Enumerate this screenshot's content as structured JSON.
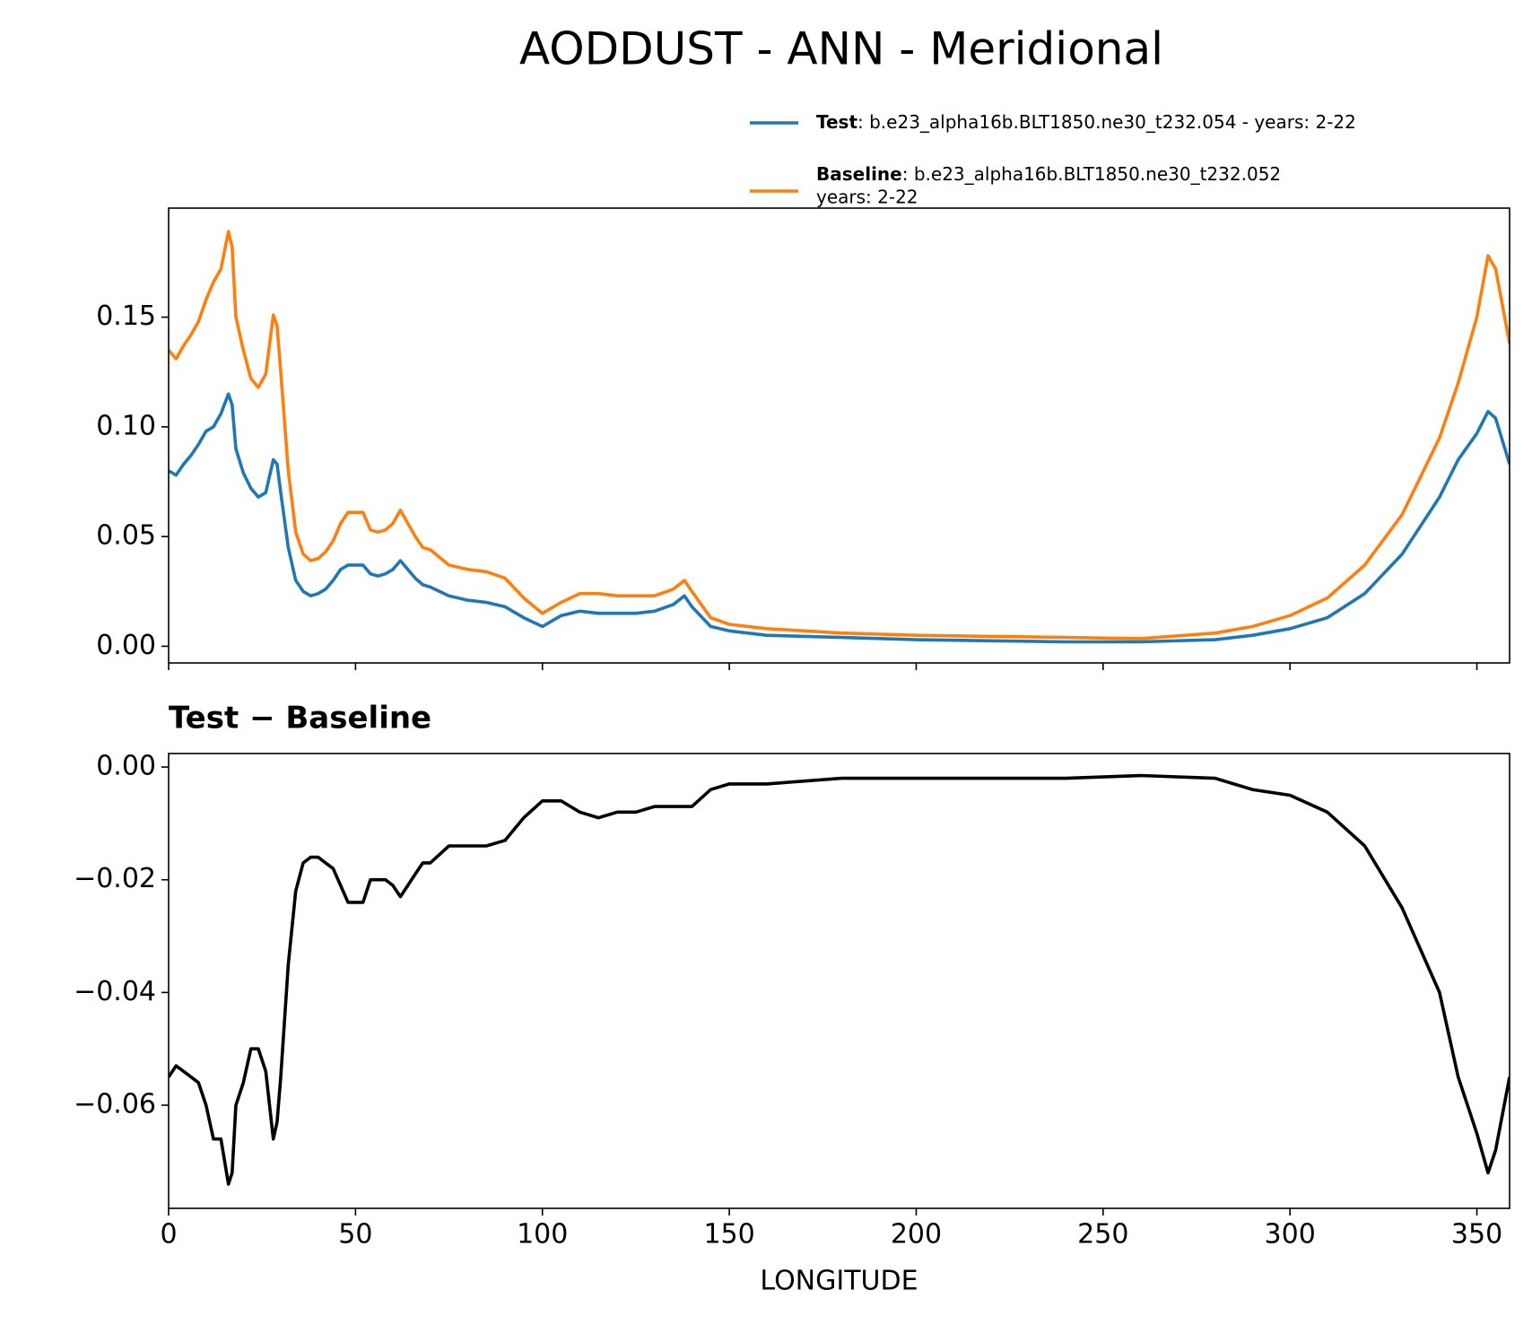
{
  "chart_data": [
    {
      "type": "line",
      "title": "AODDUST - ANN - Meridional",
      "x": [
        0,
        2,
        4,
        6,
        8,
        10,
        12,
        14,
        16,
        17,
        18,
        20,
        22,
        24,
        26,
        28,
        29,
        30,
        32,
        34,
        36,
        38,
        40,
        42,
        44,
        46,
        48,
        50,
        52,
        54,
        56,
        58,
        60,
        62,
        64,
        66,
        68,
        70,
        75,
        80,
        85,
        90,
        95,
        100,
        105,
        110,
        115,
        120,
        125,
        130,
        135,
        138,
        140,
        145,
        150,
        160,
        180,
        200,
        220,
        240,
        260,
        280,
        290,
        300,
        310,
        320,
        330,
        340,
        345,
        350,
        353,
        355,
        358.75
      ],
      "series": [
        {
          "name": "Test",
          "legend_text": [
            ": b.e23_alpha16b.BLT1850.ne30_t232.054 - years: 2-22"
          ],
          "color": "#1f77b4",
          "values": [
            0.08,
            0.078,
            0.083,
            0.087,
            0.092,
            0.098,
            0.1,
            0.106,
            0.115,
            0.11,
            0.09,
            0.079,
            0.072,
            0.068,
            0.07,
            0.085,
            0.083,
            0.07,
            0.045,
            0.03,
            0.025,
            0.023,
            0.024,
            0.026,
            0.03,
            0.035,
            0.037,
            0.037,
            0.037,
            0.033,
            0.032,
            0.033,
            0.035,
            0.039,
            0.035,
            0.031,
            0.028,
            0.027,
            0.023,
            0.021,
            0.02,
            0.018,
            0.013,
            0.009,
            0.014,
            0.016,
            0.015,
            0.015,
            0.015,
            0.016,
            0.019,
            0.023,
            0.018,
            0.009,
            0.007,
            0.005,
            0.004,
            0.003,
            0.0025,
            0.002,
            0.002,
            0.003,
            0.005,
            0.008,
            0.013,
            0.024,
            0.042,
            0.068,
            0.085,
            0.097,
            0.107,
            0.104,
            0.083
          ]
        },
        {
          "name": "Baseline",
          "legend_text": [
            ": b.e23_alpha16b.BLT1850.ne30_t232.052",
            "years: 2-22"
          ],
          "color": "#ff7f0e",
          "values": [
            0.135,
            0.131,
            0.137,
            0.142,
            0.148,
            0.158,
            0.166,
            0.172,
            0.189,
            0.182,
            0.15,
            0.135,
            0.122,
            0.118,
            0.124,
            0.151,
            0.146,
            0.125,
            0.08,
            0.052,
            0.042,
            0.039,
            0.04,
            0.043,
            0.048,
            0.056,
            0.061,
            0.061,
            0.061,
            0.053,
            0.052,
            0.053,
            0.056,
            0.062,
            0.056,
            0.05,
            0.045,
            0.044,
            0.037,
            0.035,
            0.034,
            0.031,
            0.022,
            0.015,
            0.02,
            0.024,
            0.024,
            0.023,
            0.023,
            0.023,
            0.026,
            0.03,
            0.025,
            0.013,
            0.01,
            0.008,
            0.006,
            0.005,
            0.0045,
            0.004,
            0.0035,
            0.006,
            0.009,
            0.014,
            0.022,
            0.037,
            0.06,
            0.095,
            0.12,
            0.15,
            0.178,
            0.172,
            0.138
          ]
        }
      ],
      "xlim": [
        0,
        358.75
      ],
      "xticks": [
        0,
        50,
        100,
        150,
        200,
        250,
        300,
        350
      ],
      "ylim": [
        -0.0076,
        0.1997
      ],
      "yticks": [
        {
          "value": 0,
          "label": "0.00"
        },
        {
          "value": 0.05,
          "label": "0.05"
        },
        {
          "value": 0.1,
          "label": "0.10"
        },
        {
          "value": 0.15,
          "label": "0.15"
        }
      ]
    },
    {
      "type": "line",
      "title": "Test − Baseline",
      "xlabel": "LONGITUDE",
      "x": [
        0,
        2,
        4,
        6,
        8,
        10,
        12,
        14,
        16,
        17,
        18,
        20,
        22,
        24,
        26,
        28,
        29,
        30,
        32,
        34,
        36,
        38,
        40,
        42,
        44,
        46,
        48,
        50,
        52,
        54,
        56,
        58,
        60,
        62,
        64,
        66,
        68,
        70,
        75,
        80,
        85,
        90,
        95,
        100,
        105,
        110,
        115,
        120,
        125,
        130,
        135,
        138,
        140,
        145,
        150,
        160,
        180,
        200,
        220,
        240,
        260,
        280,
        290,
        300,
        310,
        320,
        330,
        340,
        345,
        350,
        353,
        355,
        358.75
      ],
      "series": [
        {
          "color": "#000000",
          "values": [
            -0.055,
            -0.053,
            -0.054,
            -0.055,
            -0.056,
            -0.06,
            -0.066,
            -0.066,
            -0.074,
            -0.072,
            -0.06,
            -0.056,
            -0.05,
            -0.05,
            -0.054,
            -0.066,
            -0.063,
            -0.055,
            -0.035,
            -0.022,
            -0.017,
            -0.016,
            -0.016,
            -0.017,
            -0.018,
            -0.021,
            -0.024,
            -0.024,
            -0.024,
            -0.02,
            -0.02,
            -0.02,
            -0.021,
            -0.023,
            -0.021,
            -0.019,
            -0.017,
            -0.017,
            -0.014,
            -0.014,
            -0.014,
            -0.013,
            -0.009,
            -0.006,
            -0.006,
            -0.008,
            -0.009,
            -0.008,
            -0.008,
            -0.007,
            -0.007,
            -0.007,
            -0.007,
            -0.004,
            -0.003,
            -0.003,
            -0.002,
            -0.002,
            -0.002,
            -0.002,
            -0.0015,
            -0.002,
            -0.004,
            -0.005,
            -0.008,
            -0.014,
            -0.025,
            -0.04,
            -0.055,
            -0.065,
            -0.072,
            -0.068,
            -0.055
          ]
        }
      ],
      "xlim": [
        0,
        358.75
      ],
      "xticks": [
        0,
        50,
        100,
        150,
        200,
        250,
        300,
        350
      ],
      "ylim": [
        -0.0783,
        0.0024
      ],
      "yticks": [
        {
          "value": 0,
          "label": "0.00"
        },
        {
          "value": -0.02,
          "label": "−0.02"
        },
        {
          "value": -0.04,
          "label": "−0.04"
        },
        {
          "value": -0.06,
          "label": "−0.06"
        }
      ]
    }
  ]
}
